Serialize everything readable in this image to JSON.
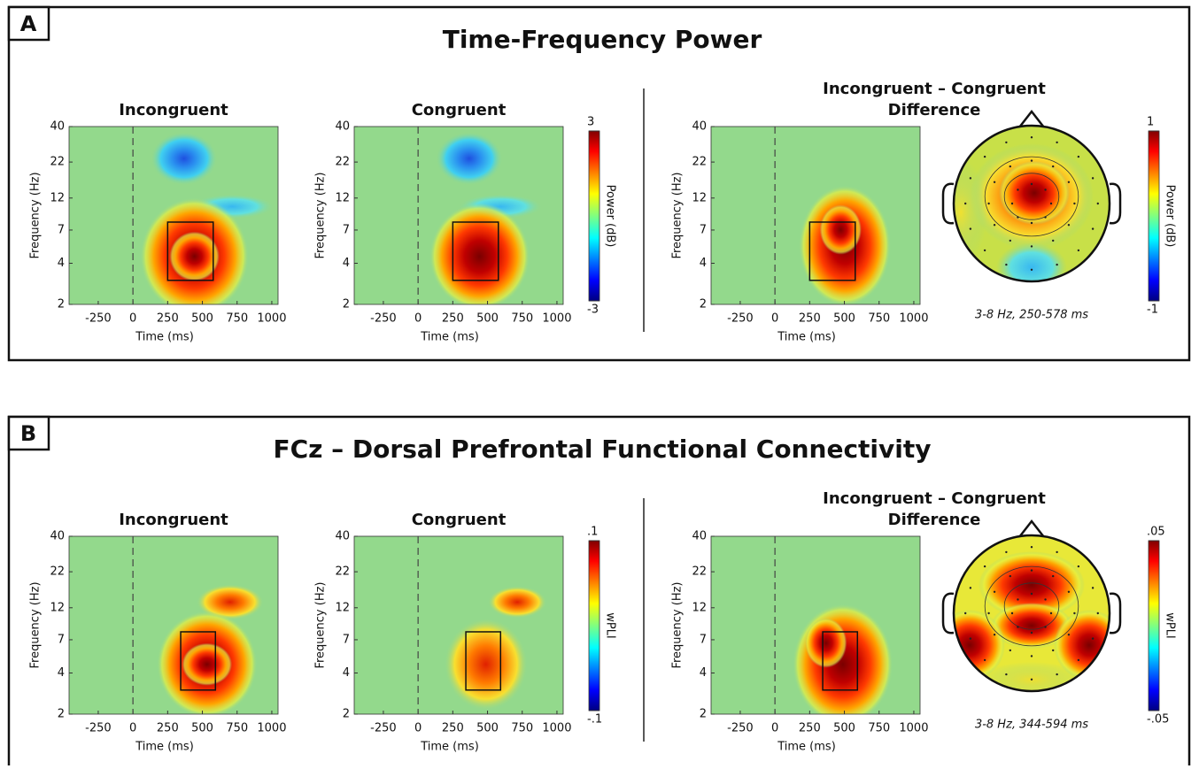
{
  "figure_panels": [
    {
      "label": "A",
      "title": "Time-Frequency Power"
    },
    {
      "label": "B",
      "title": "FCz – Dorsal Prefrontal Functional Connectivity"
    }
  ],
  "chart_data": [
    {
      "type": "heatmap",
      "title": [
        "Incongruent"
      ],
      "xlabel": "Time (ms)",
      "ylabel": "Frequency (Hz)",
      "xlim": [
        -460,
        1045
      ],
      "xticks": [
        -250,
        0,
        250,
        500,
        750,
        1000
      ],
      "ylim": [
        2,
        40
      ],
      "yticks": [
        2,
        4,
        7,
        12,
        22,
        40
      ],
      "log_y": true,
      "box": {
        "x": [
          250,
          578
        ],
        "y": [
          3,
          8
        ]
      }
    },
    {
      "type": "heatmap",
      "title": [
        "Congruent"
      ],
      "xlabel": "Time (ms)",
      "ylabel": "Frequency (Hz)",
      "xlim": [
        -460,
        1045
      ],
      "xticks": [
        -250,
        0,
        250,
        500,
        750,
        1000
      ],
      "ylim": [
        2,
        40
      ],
      "yticks": [
        2,
        4,
        7,
        12,
        22,
        40
      ],
      "log_y": true,
      "box": {
        "x": [
          250,
          578
        ],
        "y": [
          3,
          8
        ]
      }
    },
    {
      "type": "colorbar",
      "label": "Power (dB)",
      "ylim": [
        -3,
        3
      ],
      "yticks": [
        3,
        -3
      ]
    },
    {
      "type": "heatmap",
      "title": [
        "Incongruent – Congruent",
        "Difference"
      ],
      "xlabel": "Time (ms)",
      "ylabel": "Frequency (Hz)",
      "xlim": [
        -460,
        1045
      ],
      "xticks": [
        -250,
        0,
        250,
        500,
        750,
        1000
      ],
      "ylim": [
        2,
        40
      ],
      "yticks": [
        2,
        4,
        7,
        12,
        22,
        40
      ],
      "log_y": true,
      "box": {
        "x": [
          250,
          578
        ],
        "y": [
          3,
          8
        ]
      }
    },
    {
      "type": "topomap",
      "caption": "3-8 Hz, 250-578 ms"
    },
    {
      "type": "colorbar",
      "label": "Power (dB)",
      "ylim": [
        -1,
        1
      ],
      "yticks": [
        1,
        -1
      ]
    },
    {
      "type": "heatmap",
      "title": [
        "Incongruent"
      ],
      "xlabel": "Time (ms)",
      "ylabel": "Frequency (Hz)",
      "xlim": [
        -460,
        1045
      ],
      "xticks": [
        -250,
        0,
        250,
        500,
        750,
        1000
      ],
      "ylim": [
        2,
        40
      ],
      "yticks": [
        2,
        4,
        7,
        12,
        22,
        40
      ],
      "log_y": true,
      "box": {
        "x": [
          344,
          594
        ],
        "y": [
          3,
          8
        ]
      }
    },
    {
      "type": "heatmap",
      "title": [
        "Congruent"
      ],
      "xlabel": "Time (ms)",
      "ylabel": "Frequency (Hz)",
      "xlim": [
        -460,
        1045
      ],
      "xticks": [
        -250,
        0,
        250,
        500,
        750,
        1000
      ],
      "ylim": [
        2,
        40
      ],
      "yticks": [
        2,
        4,
        7,
        12,
        22,
        40
      ],
      "log_y": true,
      "box": {
        "x": [
          344,
          594
        ],
        "y": [
          3,
          8
        ]
      }
    },
    {
      "type": "colorbar",
      "label": "wPLI",
      "ylim": [
        -0.1,
        0.1
      ],
      "yticks": [
        {
          "value": 0.1,
          "label": ".1"
        },
        {
          "value": -0.1,
          "label": "-.1"
        }
      ]
    },
    {
      "type": "heatmap",
      "title": [
        "Incongruent – Congruent",
        "Difference"
      ],
      "xlabel": "Time (ms)",
      "ylabel": "Frequency (Hz)",
      "xlim": [
        -460,
        1045
      ],
      "xticks": [
        -250,
        0,
        250,
        500,
        750,
        1000
      ],
      "ylim": [
        2,
        40
      ],
      "yticks": [
        2,
        4,
        7,
        12,
        22,
        40
      ],
      "log_y": true,
      "box": {
        "x": [
          344,
          594
        ],
        "y": [
          3,
          8
        ]
      }
    },
    {
      "type": "topomap",
      "caption": "3-8 Hz, 344-594 ms"
    },
    {
      "type": "colorbar",
      "label": "wPLI",
      "ylim": [
        -0.05,
        0.05
      ],
      "yticks": [
        {
          "value": 0.05,
          "label": ".05"
        },
        {
          "value": -0.05,
          "label": "-.05"
        }
      ]
    }
  ]
}
